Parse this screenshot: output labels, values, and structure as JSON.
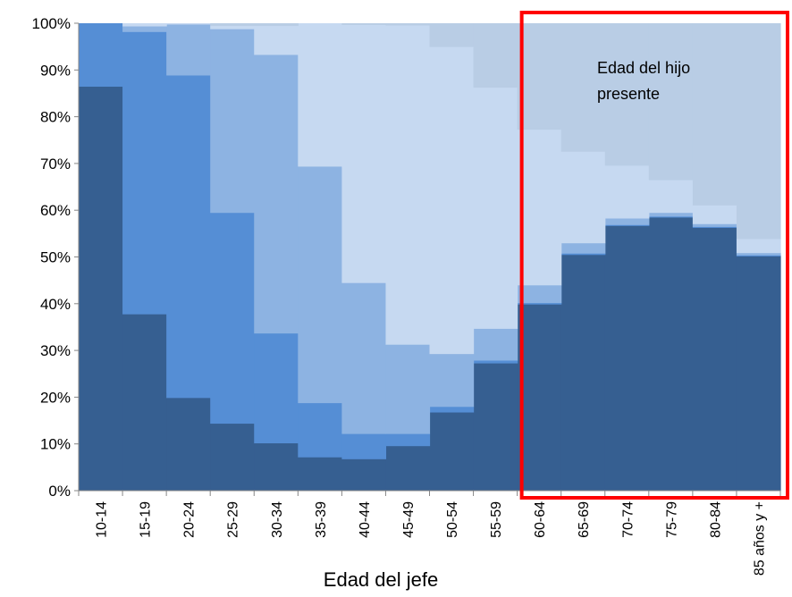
{
  "chart_data": {
    "type": "area",
    "stacked": true,
    "percent": true,
    "categories": [
      "10-14",
      "15-19",
      "20-24",
      "25-29",
      "30-34",
      "35-39",
      "40-44",
      "45-49",
      "50-54",
      "55-59",
      "60-64",
      "65-69",
      "70-74",
      "75-79",
      "80-84",
      "85 años y +"
    ],
    "series": [
      {
        "color": "#365f91",
        "values": [
          86.5,
          37.8,
          19.9,
          14.4,
          10.2,
          7.2,
          6.8,
          9.6,
          16.8,
          27.3,
          39.9,
          50.5,
          56.7,
          58.5,
          56.3,
          50.2
        ]
      },
      {
        "color": "#558ed5",
        "values": [
          13.5,
          60.4,
          69.0,
          45.1,
          23.5,
          11.6,
          5.4,
          2.6,
          1.2,
          0.6,
          0.3,
          0.3,
          0.2,
          0.2,
          0.2,
          0.2
        ]
      },
      {
        "color": "#8db3e2",
        "values": [
          0.0,
          1.2,
          10.9,
          39.3,
          59.6,
          50.6,
          32.3,
          19.1,
          11.3,
          6.8,
          3.8,
          2.2,
          1.4,
          0.8,
          0.6,
          0.5
        ]
      },
      {
        "color": "#c6d9f1",
        "values": [
          0.0,
          0.6,
          0.2,
          0.7,
          6.2,
          30.6,
          55.2,
          68.3,
          65.7,
          51.6,
          33.3,
          19.6,
          11.3,
          7.0,
          4.0,
          3.0
        ]
      },
      {
        "color": "#b9cde5",
        "values": [
          0.0,
          0.0,
          0.0,
          0.5,
          0.5,
          0.0,
          0.3,
          0.4,
          5.0,
          13.7,
          22.7,
          27.4,
          30.4,
          33.5,
          38.9,
          46.1
        ]
      }
    ],
    "y_ticks": [
      "0%",
      "10%",
      "20%",
      "30%",
      "40%",
      "50%",
      "60%",
      "70%",
      "80%",
      "90%",
      "100%"
    ],
    "ylim": [
      0,
      100
    ],
    "xlabel": "Edad del jefe",
    "ylabel": "",
    "grid": false,
    "legend": "none",
    "annotations": [
      {
        "text_lines": [
          "Edad del hijo",
          "presente"
        ],
        "highlight": "red-box",
        "highlight_color": "#ff0000",
        "from_category": "60-64",
        "to_category": "85 años y +"
      }
    ]
  }
}
